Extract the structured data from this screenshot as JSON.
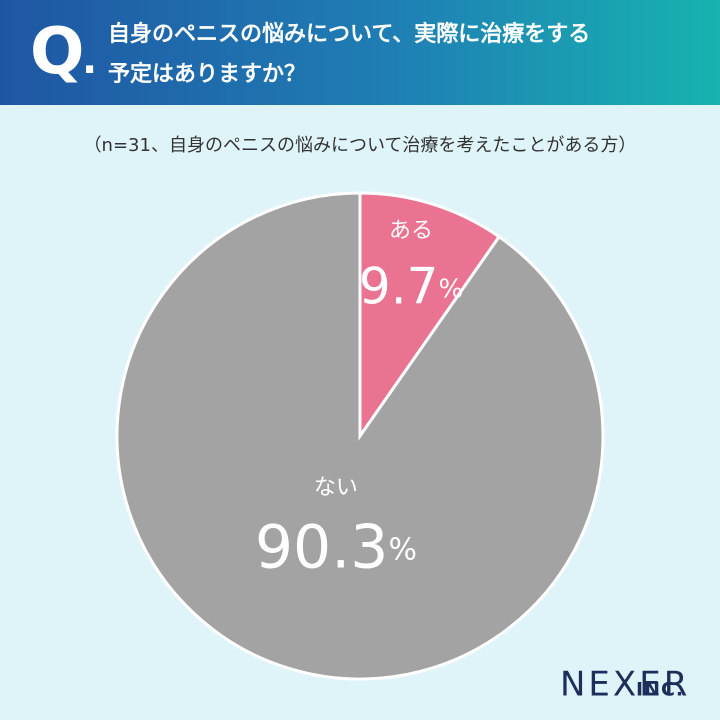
{
  "header": {
    "q_mark": "Q",
    "q_dot": ".",
    "title_lines": [
      "自身のペニスの悩みについて、実際に治療をする",
      "予定はありますか？"
    ]
  },
  "chart_data": {
    "type": "pie",
    "subtitle": "（n=31、自身のペニスの悩みについて治療を考えたことがある方）",
    "categories": [
      "ある",
      "ない"
    ],
    "values": [
      9.7,
      90.3
    ],
    "value_labels": [
      "9.7%",
      "90.3%"
    ],
    "colors": [
      "#e97391",
      "#a3a3a3"
    ]
  },
  "logo": {
    "name": "NEXER",
    "suffix": "INC."
  }
}
